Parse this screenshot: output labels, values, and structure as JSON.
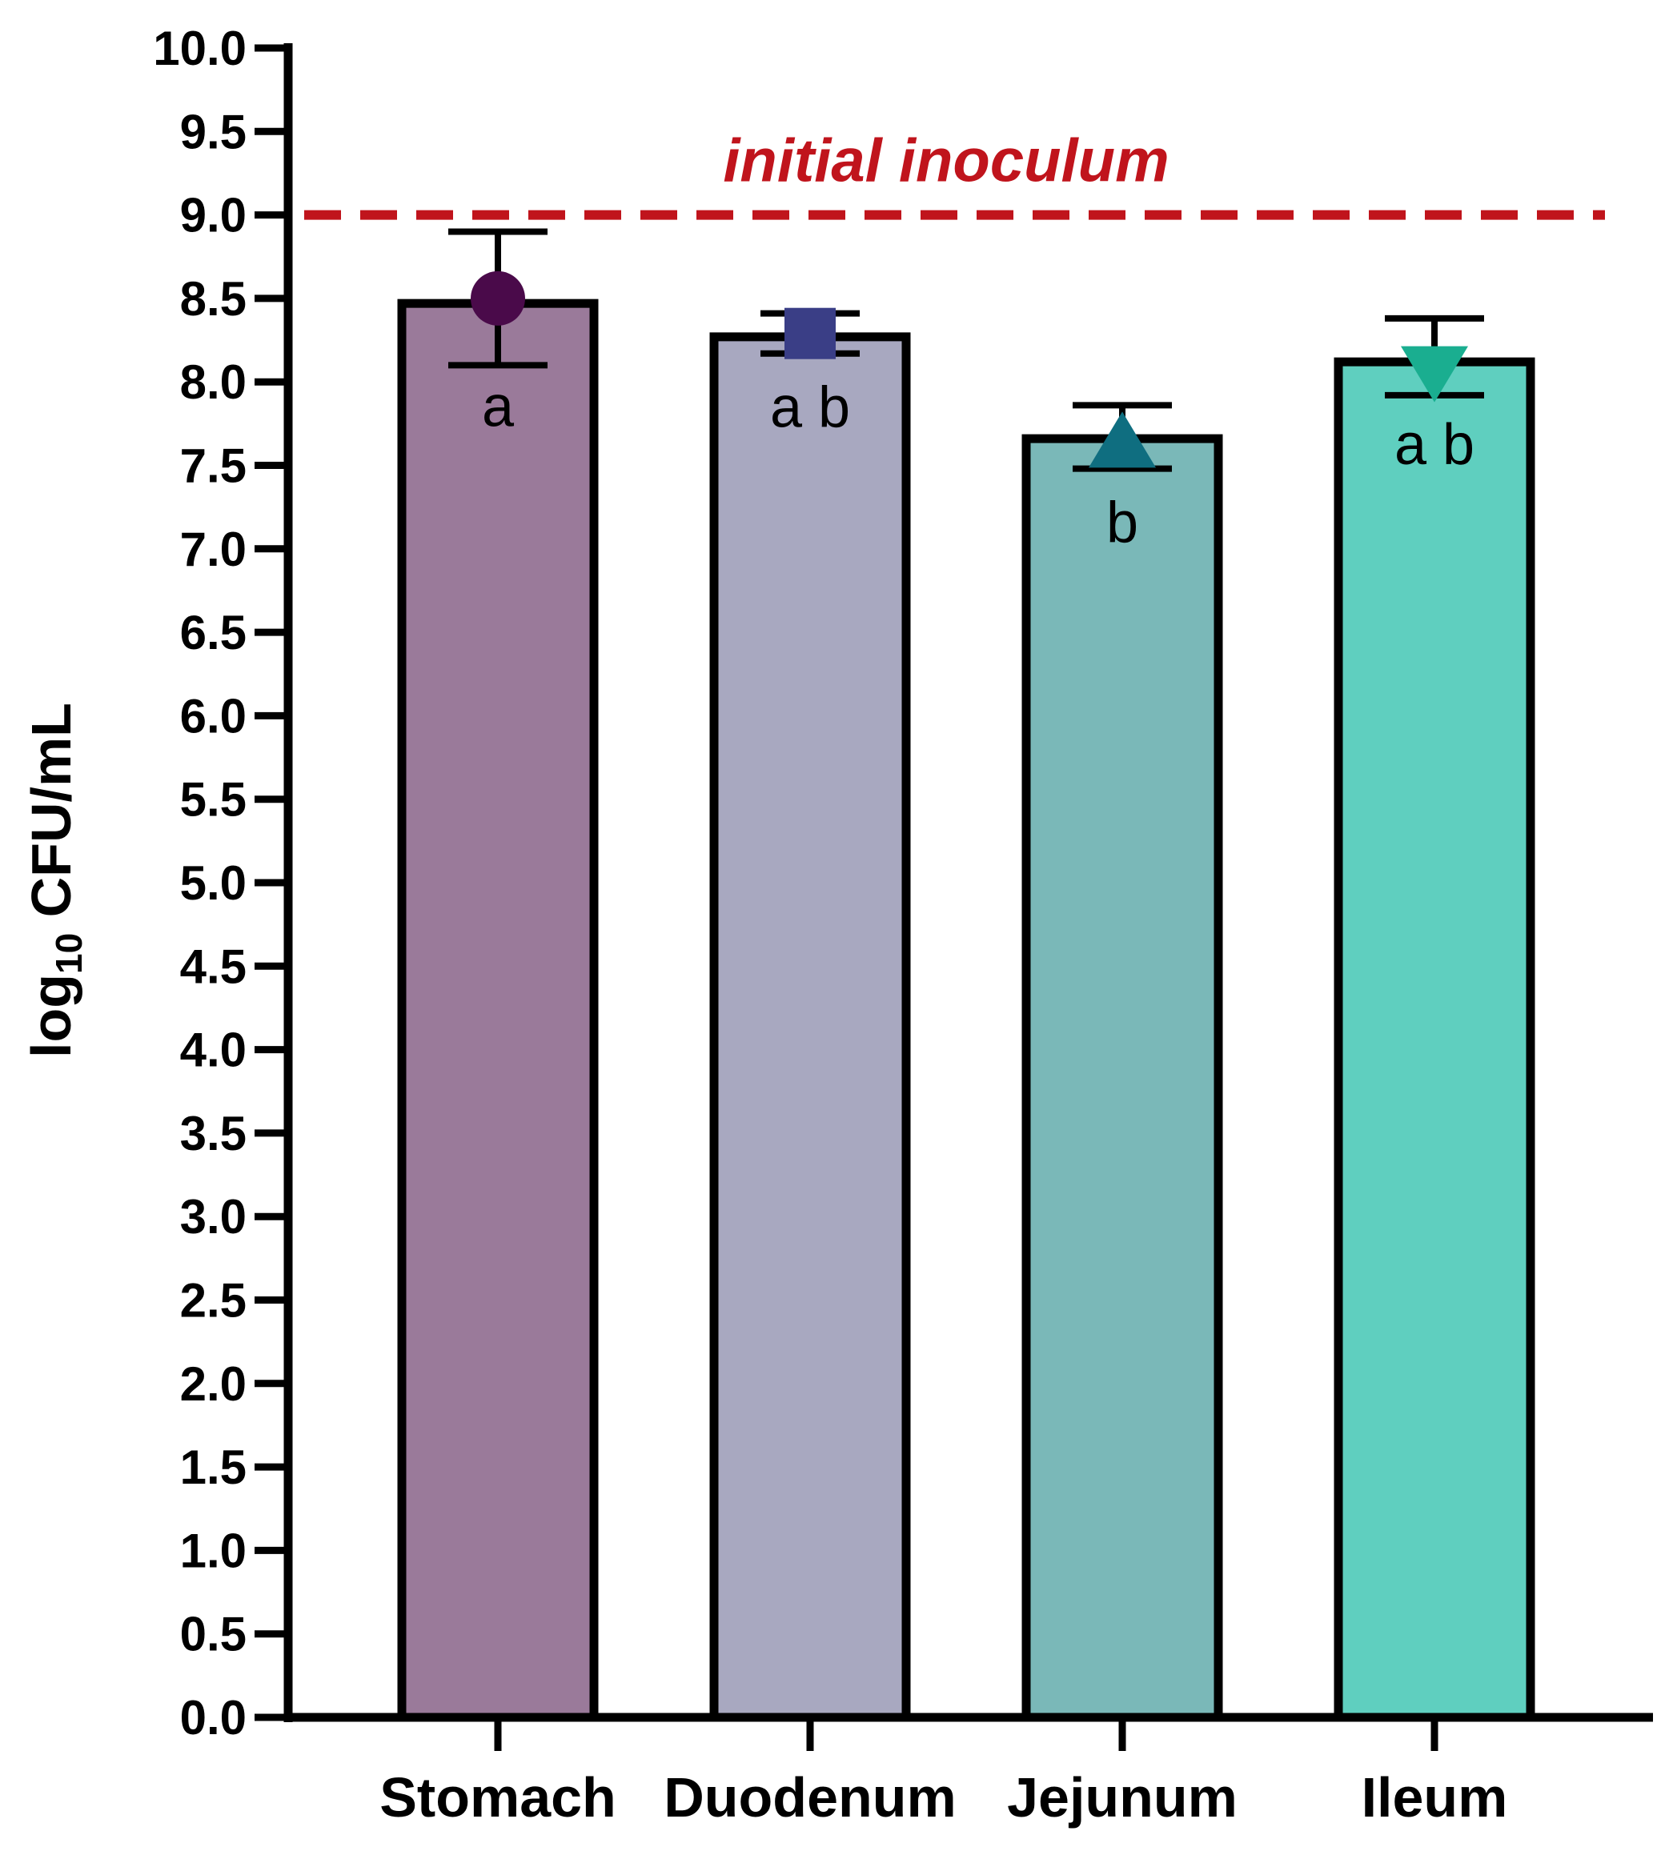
{
  "chart_data": {
    "type": "bar",
    "title": "",
    "xlabel": "",
    "ylabel": "log10 CFU/mL",
    "ylabel_parts": {
      "main": "log",
      "sub": "10",
      "rest": " CFU/mL"
    },
    "ylim": [
      0,
      10
    ],
    "yticks": [
      "0.0",
      "0.5",
      "1.0",
      "1.5",
      "2.0",
      "2.5",
      "3.0",
      "3.5",
      "4.0",
      "4.5",
      "5.0",
      "5.5",
      "6.0",
      "6.5",
      "7.0",
      "7.5",
      "8.0",
      "8.5",
      "9.0",
      "9.5",
      "10.0"
    ],
    "categories": [
      "Stomach",
      "Duodenum",
      "Jejunum",
      "Ileum"
    ],
    "values": [
      8.47,
      8.27,
      7.66,
      8.12
    ],
    "error_low": [
      8.1,
      8.17,
      7.48,
      7.92
    ],
    "error_high": [
      8.9,
      8.41,
      7.86,
      8.38
    ],
    "point_values": [
      8.5,
      8.29,
      7.63,
      8.07
    ],
    "significance": [
      "a",
      "a b",
      "b",
      "a b"
    ],
    "bar_colors": [
      "#9a7a9a",
      "#a8a8c0",
      "#7ab8b8",
      "#5fcfbf"
    ],
    "marker_shapes": [
      "circle",
      "square",
      "triangle-up",
      "triangle-down"
    ],
    "marker_colors": [
      "#4a0a4a",
      "#3a3e86",
      "#0f6e80",
      "#1aae90"
    ],
    "reference_line": {
      "value": 9.0,
      "label": "initial inoculum",
      "color": "#c0141c",
      "style": "dashed"
    },
    "grid": false,
    "legend": "none"
  }
}
